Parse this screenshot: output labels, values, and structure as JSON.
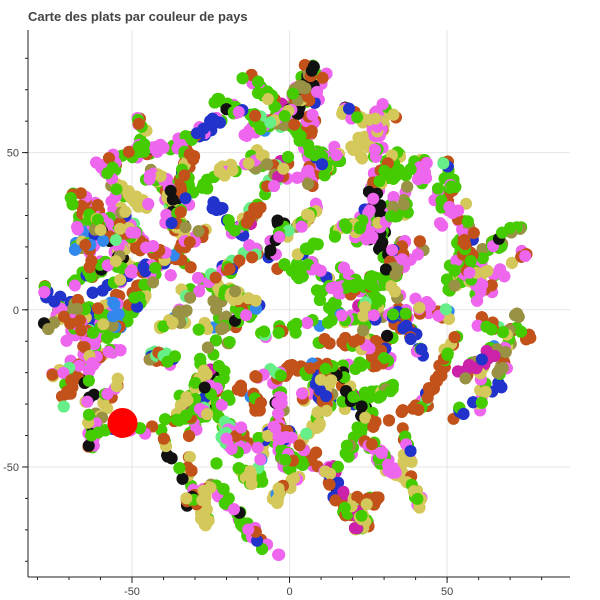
{
  "chart_data": {
    "type": "scatter",
    "title": "Carte des plats par couleur de pays",
    "xlabel": "",
    "ylabel": "",
    "xlim": [
      -83,
      89
    ],
    "ylim": [
      -85,
      89
    ],
    "x_ticks": [
      -50,
      0,
      50
    ],
    "y_ticks": [
      50,
      0,
      -50
    ],
    "x_tick_labels": [
      "-50",
      "0",
      "50"
    ],
    "y_tick_labels": [
      "50",
      "0",
      "-50"
    ],
    "grid": true,
    "legend": "none",
    "cloud": {
      "center": [
        0,
        0
      ],
      "radius": 78,
      "approx_point_count": 9000
    },
    "series_colors": [
      "#44cc00",
      "#ee66ee",
      "#c2521a",
      "#d4c85a",
      "#2233cc",
      "#999144",
      "#66ee88",
      "#3388ee",
      "#111111",
      "#cc22aa"
    ],
    "highlight": {
      "x": -53,
      "y": -36,
      "color": "#ff0000"
    }
  }
}
